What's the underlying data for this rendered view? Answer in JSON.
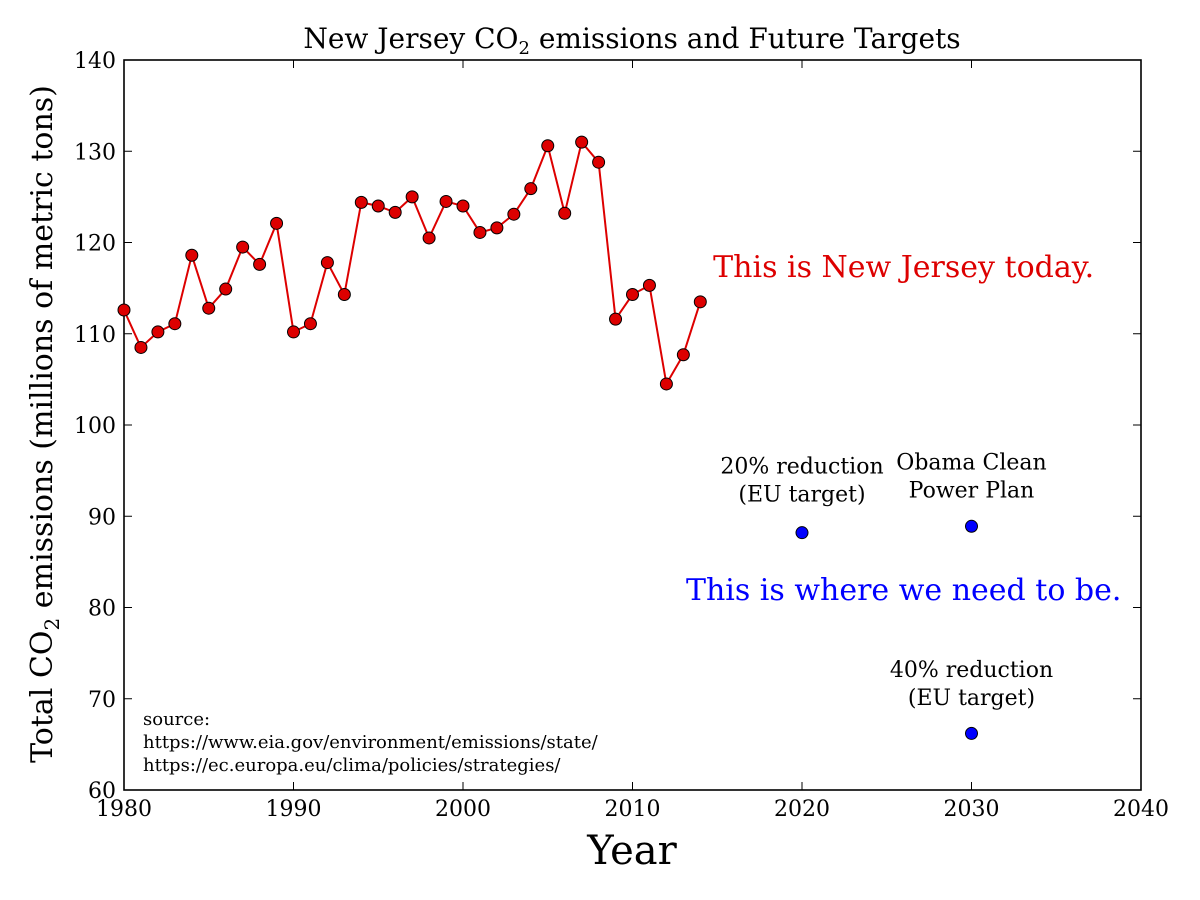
{
  "chart_data": {
    "type": "scatter",
    "title_prefix": "New Jersey CO",
    "title_sub": "2",
    "title_suffix": " emissions and Future Targets",
    "xlabel": "Year",
    "ylabel_prefix": "Total CO",
    "ylabel_sub": "2",
    "ylabel_suffix": " emissions (millions of metric tons)",
    "xlim": [
      1980,
      2040
    ],
    "ylim": [
      60,
      140
    ],
    "xticks": [
      1980,
      1990,
      2000,
      2010,
      2020,
      2030,
      2040
    ],
    "yticks": [
      60,
      70,
      80,
      90,
      100,
      110,
      120,
      130,
      140
    ],
    "grid": false,
    "series": [
      {
        "color": "#dd0000",
        "style": "line+markers",
        "x": [
          1980,
          1981,
          1982,
          1983,
          1984,
          1985,
          1986,
          1987,
          1988,
          1989,
          1990,
          1991,
          1992,
          1993,
          1994,
          1995,
          1996,
          1997,
          1998,
          1999,
          2000,
          2001,
          2002,
          2003,
          2004,
          2005,
          2006,
          2007,
          2008,
          2009,
          2010,
          2011,
          2012,
          2013,
          2014
        ],
        "y": [
          112.6,
          108.5,
          110.2,
          111.1,
          118.6,
          112.8,
          114.9,
          119.5,
          117.6,
          122.1,
          110.2,
          111.1,
          117.8,
          114.3,
          124.4,
          124.0,
          123.3,
          125.0,
          120.5,
          124.5,
          124.0,
          121.1,
          121.6,
          123.1,
          125.9,
          130.6,
          123.2,
          131.0,
          128.8,
          111.6,
          114.3,
          115.3,
          104.5,
          107.7,
          113.5
        ]
      },
      {
        "color": "#0000ff",
        "style": "markers",
        "x": [
          2020,
          2030,
          2030
        ],
        "y": [
          88.2,
          88.9,
          66.2
        ]
      }
    ],
    "annotations": [
      {
        "lines": [
          "20% reduction",
          "(EU target)"
        ],
        "x": 2020,
        "y": 94.7
      },
      {
        "lines": [
          "Obama Clean",
          "Power Plan"
        ],
        "x": 2030,
        "y": 95.1
      },
      {
        "lines": [
          "40% reduction",
          "(EU target)"
        ],
        "x": 2030,
        "y": 72.4
      }
    ],
    "callouts": [
      {
        "text": "This is New Jersey today.",
        "color": "#dd0000",
        "x": 2026,
        "y": 116.2
      },
      {
        "text": "This is where we need to be.",
        "color": "#0000ff",
        "x": 2026,
        "y": 80.8
      }
    ],
    "source_lines": [
      "source:",
      "https://www.eia.gov/environment/emissions/state/",
      "https://ec.europa.eu/clima/policies/strategies/"
    ]
  }
}
